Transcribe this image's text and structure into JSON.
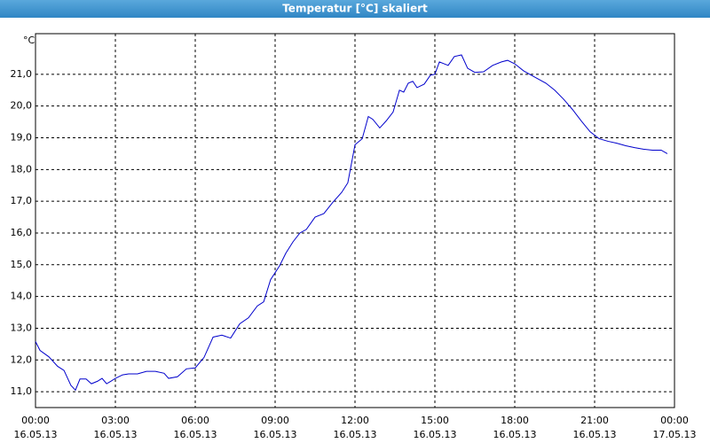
{
  "chart_data": {
    "type": "line",
    "title": "Temperatur [°C] skaliert",
    "y_label": "°C",
    "x": [
      0,
      0.17,
      0.5,
      0.83,
      1.07,
      1.33,
      1.5,
      1.67,
      1.9,
      2.1,
      2.33,
      2.5,
      2.67,
      2.83,
      3,
      3.27,
      3.5,
      3.83,
      4.17,
      4.5,
      4.83,
      5,
      5.33,
      5.67,
      6,
      6.33,
      6.67,
      7,
      7.33,
      7.67,
      8,
      8.33,
      8.57,
      8.83,
      9.17,
      9.4,
      9.67,
      9.93,
      10.17,
      10.5,
      10.83,
      11.17,
      11.5,
      11.73,
      12,
      12.27,
      12.5,
      12.67,
      12.93,
      13.17,
      13.43,
      13.67,
      13.83,
      14,
      14.17,
      14.33,
      14.6,
      14.83,
      15,
      15.17,
      15.5,
      15.73,
      16,
      16.23,
      16.5,
      16.83,
      17.17,
      17.5,
      17.73,
      18,
      18.33,
      18.73,
      19.17,
      19.5,
      19.83,
      20.17,
      20.5,
      20.83,
      21.17,
      21.5,
      21.83,
      22.17,
      22.5,
      22.83,
      23.17,
      23.5,
      23.73
    ],
    "series": [
      {
        "color": "#0000cc",
        "values": [
          12.58,
          12.3,
          12.1,
          11.8,
          11.67,
          11.2,
          11.05,
          11.4,
          11.4,
          11.25,
          11.33,
          11.42,
          11.25,
          11.33,
          11.42,
          11.53,
          11.56,
          11.56,
          11.64,
          11.64,
          11.58,
          11.42,
          11.47,
          11.72,
          11.75,
          12.08,
          12.72,
          12.78,
          12.69,
          13.14,
          13.33,
          13.7,
          13.83,
          14.53,
          14.97,
          15.36,
          15.72,
          16.0,
          16.11,
          16.5,
          16.61,
          16.97,
          17.28,
          17.58,
          18.78,
          18.97,
          19.67,
          19.58,
          19.31,
          19.53,
          19.81,
          20.5,
          20.44,
          20.72,
          20.78,
          20.58,
          20.69,
          20.97,
          21.0,
          21.39,
          21.28,
          21.56,
          21.61,
          21.19,
          21.06,
          21.08,
          21.28,
          21.39,
          21.44,
          21.33,
          21.11,
          20.92,
          20.72,
          20.5,
          20.22,
          19.89,
          19.53,
          19.19,
          18.97,
          18.89,
          18.83,
          18.75,
          18.69,
          18.64,
          18.61,
          18.61,
          18.5
        ]
      }
    ],
    "xlim": [
      0,
      24
    ],
    "xticks": [
      {
        "value": 0,
        "label": "00:00",
        "date": "16.05.13"
      },
      {
        "value": 3,
        "label": "03:00",
        "date": "16.05.13"
      },
      {
        "value": 6,
        "label": "06:00",
        "date": "16.05.13"
      },
      {
        "value": 9,
        "label": "09:00",
        "date": "16.05.13"
      },
      {
        "value": 12,
        "label": "12:00",
        "date": "16.05.13"
      },
      {
        "value": 15,
        "label": "15:00",
        "date": "16.05.13"
      },
      {
        "value": 18,
        "label": "18:00",
        "date": "16.05.13"
      },
      {
        "value": 21,
        "label": "21:00",
        "date": "16.05.13"
      },
      {
        "value": 24,
        "label": "00:00",
        "date": "17.05.13"
      }
    ],
    "ylim": [
      10.5,
      22.28
    ],
    "yticks": [
      {
        "value": 11,
        "label": "11,0"
      },
      {
        "value": 12,
        "label": "12,0"
      },
      {
        "value": 13,
        "label": "13,0"
      },
      {
        "value": 14,
        "label": "14,0"
      },
      {
        "value": 15,
        "label": "15,0"
      },
      {
        "value": 16,
        "label": "16,0"
      },
      {
        "value": 17,
        "label": "17,0"
      },
      {
        "value": 18,
        "label": "18,0"
      },
      {
        "value": 19,
        "label": "19,0"
      },
      {
        "value": 20,
        "label": "20,0"
      },
      {
        "value": 21,
        "label": "21,0"
      }
    ],
    "grid": true
  }
}
